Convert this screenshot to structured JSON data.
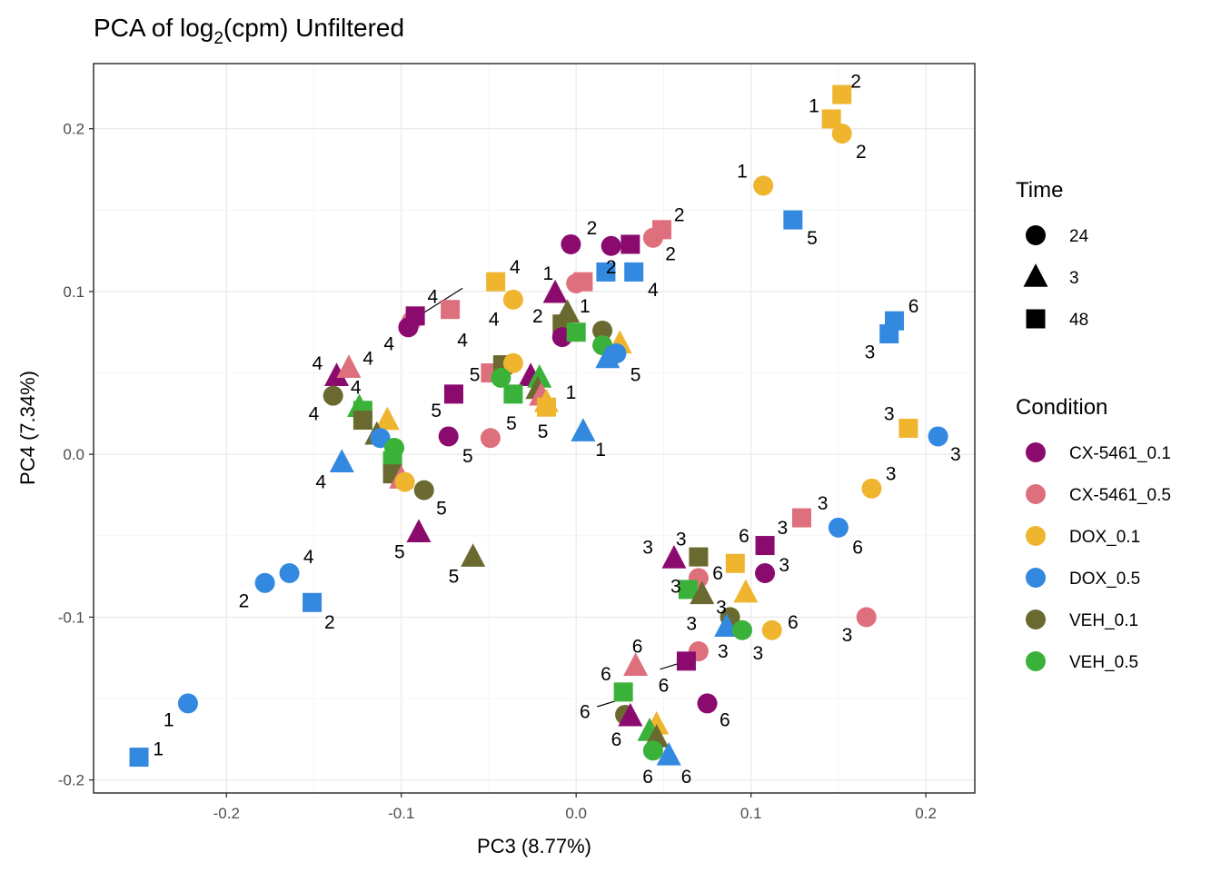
{
  "chart_data": {
    "type": "scatter",
    "title": "PCA of log",
    "title_subscript": "2",
    "title_suffix": "(cpm) Unfiltered",
    "xlabel": "PC3 (8.77%)",
    "ylabel": "PC4 (7.34%)",
    "xlim": [
      -0.276,
      0.228
    ],
    "ylim": [
      -0.208,
      0.24
    ],
    "xticks": [
      -0.2,
      -0.1,
      0.0,
      0.1,
      0.2
    ],
    "xtick_labels": [
      "-0.2",
      "-0.1",
      "0.0",
      "0.1",
      "0.2"
    ],
    "yticks": [
      -0.2,
      -0.1,
      0.0,
      0.1,
      0.2
    ],
    "ytick_labels": [
      "-0.2",
      "-0.1",
      "0.0",
      "0.1",
      "0.2"
    ],
    "grid": true,
    "legend_time": {
      "title": "Time",
      "items": [
        {
          "label": "24",
          "shape": "circle"
        },
        {
          "label": "3",
          "shape": "triangle"
        },
        {
          "label": "48",
          "shape": "square"
        }
      ]
    },
    "legend_condition": {
      "title": "Condition",
      "items": [
        {
          "label": "CX-5461_0.1",
          "color": "#8b0a6e"
        },
        {
          "label": "CX-5461_0.5",
          "color": "#de6f7c"
        },
        {
          "label": "DOX_0.1",
          "color": "#efb52f"
        },
        {
          "label": "DOX_0.5",
          "color": "#3388e0"
        },
        {
          "label": "VEH_0.1",
          "color": "#6a6a30"
        },
        {
          "label": "VEH_0.5",
          "color": "#3ab23a"
        }
      ]
    },
    "points": [
      {
        "x": 0.152,
        "y": 0.221,
        "c": "DOX_0.1",
        "s": "48",
        "label": "2",
        "lx": 0.16,
        "ly": 0.229
      },
      {
        "x": 0.146,
        "y": 0.206,
        "c": "DOX_0.1",
        "s": "48",
        "label": "1",
        "lx": 0.136,
        "ly": 0.214
      },
      {
        "x": 0.152,
        "y": 0.197,
        "c": "DOX_0.1",
        "s": "24",
        "label": "2",
        "lx": 0.163,
        "ly": 0.186
      },
      {
        "x": 0.107,
        "y": 0.165,
        "c": "DOX_0.1",
        "s": "24",
        "label": "1",
        "lx": 0.095,
        "ly": 0.174
      },
      {
        "x": 0.124,
        "y": 0.144,
        "c": "DOX_0.5",
        "s": "48",
        "label": "5",
        "lx": 0.135,
        "ly": 0.133
      },
      {
        "x": 0.182,
        "y": 0.082,
        "c": "DOX_0.5",
        "s": "48",
        "label": "6",
        "lx": 0.193,
        "ly": 0.091
      },
      {
        "x": 0.179,
        "y": 0.074,
        "c": "DOX_0.5",
        "s": "48",
        "label": "3",
        "lx": 0.168,
        "ly": 0.063
      },
      {
        "x": 0.19,
        "y": 0.016,
        "c": "DOX_0.1",
        "s": "48",
        "label": "3",
        "lx": 0.179,
        "ly": 0.025
      },
      {
        "x": 0.207,
        "y": 0.011,
        "c": "DOX_0.5",
        "s": "24",
        "label": "3",
        "lx": 0.217,
        "ly": 0.0
      },
      {
        "x": 0.169,
        "y": -0.021,
        "c": "DOX_0.1",
        "s": "24",
        "label": "3",
        "lx": 0.18,
        "ly": -0.012
      },
      {
        "x": 0.129,
        "y": -0.039,
        "c": "CX-5461_0.5",
        "s": "48",
        "label": "3",
        "lx": 0.141,
        "ly": -0.03
      },
      {
        "x": 0.15,
        "y": -0.045,
        "c": "DOX_0.5",
        "s": "24",
        "label": "6",
        "lx": 0.161,
        "ly": -0.057
      },
      {
        "x": 0.108,
        "y": -0.056,
        "c": "CX-5461_0.1",
        "s": "48",
        "label": "3",
        "lx": 0.118,
        "ly": -0.045
      },
      {
        "x": 0.166,
        "y": -0.1,
        "c": "CX-5461_0.5",
        "s": "24",
        "label": "3",
        "lx": 0.155,
        "ly": -0.111
      },
      {
        "x": 0.108,
        "y": -0.073,
        "c": "CX-5461_0.1",
        "s": "24",
        "label": "3",
        "lx": 0.119,
        "ly": -0.068
      },
      {
        "x": 0.112,
        "y": -0.108,
        "c": "DOX_0.1",
        "s": "24",
        "label": "6",
        "lx": 0.124,
        "ly": -0.103
      },
      {
        "x": 0.091,
        "y": -0.067,
        "c": "DOX_0.1",
        "s": "48",
        "label": "6",
        "lx": 0.096,
        "ly": -0.05
      },
      {
        "x": 0.097,
        "y": -0.085,
        "c": "DOX_0.1",
        "s": "3",
        "label": "",
        "lx": 0,
        "ly": 0
      },
      {
        "x": 0.07,
        "y": -0.063,
        "c": "VEH_0.1",
        "s": "48",
        "label": "3",
        "lx": 0.06,
        "ly": -0.052
      },
      {
        "x": 0.056,
        "y": -0.064,
        "c": "CX-5461_0.1",
        "s": "3",
        "label": "3",
        "lx": 0.041,
        "ly": -0.057
      },
      {
        "x": 0.07,
        "y": -0.076,
        "c": "CX-5461_0.5",
        "s": "24",
        "label": "6",
        "lx": 0.081,
        "ly": -0.073
      },
      {
        "x": 0.064,
        "y": -0.083,
        "c": "VEH_0.5",
        "s": "48",
        "label": "3",
        "lx": 0.057,
        "ly": -0.081
      },
      {
        "x": 0.072,
        "y": -0.086,
        "c": "VEH_0.1",
        "s": "3",
        "label": "3",
        "lx": 0.083,
        "ly": -0.094
      },
      {
        "x": 0.088,
        "y": -0.1,
        "c": "VEH_0.1",
        "s": "24",
        "label": "3",
        "lx": 0.066,
        "ly": -0.104
      },
      {
        "x": 0.086,
        "y": -0.106,
        "c": "DOX_0.5",
        "s": "3",
        "label": "",
        "lx": 0,
        "ly": 0
      },
      {
        "x": 0.095,
        "y": -0.108,
        "c": "VEH_0.5",
        "s": "24",
        "label": "3",
        "lx": 0.104,
        "ly": -0.122
      },
      {
        "x": 0.07,
        "y": -0.121,
        "c": "CX-5461_0.5",
        "s": "24",
        "label": "3",
        "lx": 0.084,
        "ly": -0.121
      },
      {
        "x": 0.063,
        "y": -0.127,
        "c": "CX-5461_0.1",
        "s": "48",
        "label": "6",
        "lx": 0.05,
        "ly": -0.142
      },
      {
        "x": 0.075,
        "y": -0.153,
        "c": "CX-5461_0.1",
        "s": "24",
        "label": "6",
        "lx": 0.085,
        "ly": -0.163
      },
      {
        "x": 0.034,
        "y": -0.13,
        "c": "CX-5461_0.5",
        "s": "3",
        "label": "6",
        "lx": 0.035,
        "ly": -0.118
      },
      {
        "x": 0.027,
        "y": -0.146,
        "c": "VEH_0.5",
        "s": "48",
        "label": "6",
        "lx": 0.017,
        "ly": -0.135
      },
      {
        "x": 0.028,
        "y": -0.16,
        "c": "VEH_0.1",
        "s": "24",
        "label": "6",
        "lx": 0.005,
        "ly": -0.158
      },
      {
        "x": 0.031,
        "y": -0.161,
        "c": "CX-5461_0.1",
        "s": "3",
        "label": "",
        "lx": 0,
        "ly": 0
      },
      {
        "x": 0.046,
        "y": -0.166,
        "c": "DOX_0.1",
        "s": "3",
        "label": "",
        "lx": 0,
        "ly": 0
      },
      {
        "x": 0.042,
        "y": -0.17,
        "c": "VEH_0.5",
        "s": "3",
        "label": "6",
        "lx": 0.023,
        "ly": -0.175
      },
      {
        "x": 0.046,
        "y": -0.174,
        "c": "VEH_0.1",
        "s": "3",
        "label": "",
        "lx": 0,
        "ly": 0
      },
      {
        "x": 0.044,
        "y": -0.182,
        "c": "VEH_0.5",
        "s": "24",
        "label": "6",
        "lx": 0.041,
        "ly": -0.198
      },
      {
        "x": 0.053,
        "y": -0.185,
        "c": "DOX_0.5",
        "s": "3",
        "label": "6",
        "lx": 0.063,
        "ly": -0.198
      },
      {
        "x": 0.0,
        "y": 0.105,
        "c": "CX-5461_0.5",
        "s": "24",
        "label": "",
        "lx": 0,
        "ly": 0
      },
      {
        "x": 0.004,
        "y": 0.106,
        "c": "CX-5461_0.5",
        "s": "48",
        "label": "",
        "lx": 0,
        "ly": 0
      },
      {
        "x": -0.012,
        "y": 0.099,
        "c": "CX-5461_0.1",
        "s": "3",
        "label": "1",
        "lx": -0.016,
        "ly": 0.111
      },
      {
        "x": -0.005,
        "y": 0.087,
        "c": "VEH_0.1",
        "s": "3",
        "label": "1",
        "lx": 0.005,
        "ly": 0.091
      },
      {
        "x": -0.008,
        "y": 0.08,
        "c": "VEH_0.1",
        "s": "48",
        "label": "2",
        "lx": -0.022,
        "ly": 0.085
      },
      {
        "x": -0.008,
        "y": 0.072,
        "c": "CX-5461_0.1",
        "s": "24",
        "label": "",
        "lx": 0,
        "ly": 0
      },
      {
        "x": 0.015,
        "y": 0.076,
        "c": "VEH_0.1",
        "s": "24",
        "label": "",
        "lx": 0,
        "ly": 0
      },
      {
        "x": 0.025,
        "y": 0.068,
        "c": "DOX_0.1",
        "s": "3",
        "label": "",
        "lx": 0,
        "ly": 0
      },
      {
        "x": 0.0,
        "y": 0.075,
        "c": "VEH_0.5",
        "s": "48",
        "label": "",
        "lx": 0,
        "ly": 0
      },
      {
        "x": 0.015,
        "y": 0.067,
        "c": "VEH_0.5",
        "s": "24",
        "label": "",
        "lx": 0,
        "ly": 0
      },
      {
        "x": 0.018,
        "y": 0.059,
        "c": "DOX_0.5",
        "s": "3",
        "label": "5",
        "lx": 0.034,
        "ly": 0.049
      },
      {
        "x": 0.023,
        "y": 0.062,
        "c": "DOX_0.5",
        "s": "24",
        "label": "",
        "lx": 0,
        "ly": 0
      },
      {
        "x": -0.003,
        "y": 0.129,
        "c": "CX-5461_0.1",
        "s": "24",
        "label": "",
        "lx": 0,
        "ly": 0
      },
      {
        "x": 0.02,
        "y": 0.128,
        "c": "CX-5461_0.1",
        "s": "24",
        "label": "2",
        "lx": 0.009,
        "ly": 0.139
      },
      {
        "x": 0.031,
        "y": 0.129,
        "c": "CX-5461_0.1",
        "s": "48",
        "label": "",
        "lx": 0,
        "ly": 0
      },
      {
        "x": 0.044,
        "y": 0.133,
        "c": "CX-5461_0.5",
        "s": "24",
        "label": "2",
        "lx": 0.054,
        "ly": 0.123
      },
      {
        "x": 0.049,
        "y": 0.138,
        "c": "CX-5461_0.5",
        "s": "48",
        "label": "2",
        "lx": 0.059,
        "ly": 0.147
      },
      {
        "x": 0.033,
        "y": 0.112,
        "c": "DOX_0.5",
        "s": "48",
        "label": "4",
        "lx": 0.044,
        "ly": 0.101
      },
      {
        "x": 0.017,
        "y": 0.112,
        "c": "DOX_0.5",
        "s": "48",
        "label": "2",
        "lx": 0.02,
        "ly": 0.115
      },
      {
        "x": -0.046,
        "y": 0.106,
        "c": "DOX_0.1",
        "s": "48",
        "label": "4",
        "lx": -0.035,
        "ly": 0.115
      },
      {
        "x": -0.036,
        "y": 0.095,
        "c": "DOX_0.1",
        "s": "24",
        "label": "4",
        "lx": -0.047,
        "ly": 0.083
      },
      {
        "x": -0.094,
        "y": 0.082,
        "c": "CX-5461_0.5",
        "s": "24",
        "label": "4",
        "lx": -0.082,
        "ly": 0.097
      },
      {
        "x": -0.092,
        "y": 0.085,
        "c": "CX-5461_0.1",
        "s": "48",
        "label": "",
        "lx": 0,
        "ly": 0
      },
      {
        "x": -0.096,
        "y": 0.078,
        "c": "CX-5461_0.1",
        "s": "24",
        "label": "4",
        "lx": -0.107,
        "ly": 0.068
      },
      {
        "x": -0.072,
        "y": 0.089,
        "c": "CX-5461_0.5",
        "s": "48",
        "label": "4",
        "lx": -0.065,
        "ly": 0.07
      },
      {
        "x": -0.137,
        "y": 0.048,
        "c": "CX-5461_0.1",
        "s": "3",
        "label": "4",
        "lx": -0.148,
        "ly": 0.056
      },
      {
        "x": -0.13,
        "y": 0.053,
        "c": "CX-5461_0.5",
        "s": "3",
        "label": "4",
        "lx": -0.119,
        "ly": 0.059
      },
      {
        "x": -0.139,
        "y": 0.036,
        "c": "VEH_0.1",
        "s": "24",
        "label": "4",
        "lx": -0.15,
        "ly": 0.025
      },
      {
        "x": -0.124,
        "y": 0.029,
        "c": "VEH_0.5",
        "s": "3",
        "label": "4",
        "lx": -0.126,
        "ly": 0.041
      },
      {
        "x": -0.122,
        "y": 0.027,
        "c": "VEH_0.5",
        "s": "48",
        "label": "",
        "lx": 0,
        "ly": 0
      },
      {
        "x": -0.122,
        "y": 0.021,
        "c": "VEH_0.1",
        "s": "48",
        "label": "",
        "lx": 0,
        "ly": 0
      },
      {
        "x": -0.108,
        "y": 0.021,
        "c": "DOX_0.1",
        "s": "3",
        "label": "",
        "lx": 0,
        "ly": 0
      },
      {
        "x": -0.114,
        "y": 0.012,
        "c": "VEH_0.1",
        "s": "3",
        "label": "",
        "lx": 0,
        "ly": 0
      },
      {
        "x": -0.112,
        "y": 0.01,
        "c": "DOX_0.5",
        "s": "24",
        "label": "",
        "lx": 0,
        "ly": 0
      },
      {
        "x": -0.104,
        "y": 0.004,
        "c": "VEH_0.5",
        "s": "24",
        "label": "",
        "lx": 0,
        "ly": 0
      },
      {
        "x": -0.105,
        "y": -0.004,
        "c": "VEH_0.5",
        "s": "48",
        "label": "",
        "lx": 0,
        "ly": 0
      },
      {
        "x": -0.105,
        "y": -0.012,
        "c": "VEH_0.1",
        "s": "48",
        "label": "",
        "lx": 0,
        "ly": 0
      },
      {
        "x": -0.1,
        "y": -0.015,
        "c": "CX-5461_0.5",
        "s": "3",
        "label": "",
        "lx": 0,
        "ly": 0
      },
      {
        "x": -0.098,
        "y": -0.017,
        "c": "DOX_0.1",
        "s": "24",
        "label": "",
        "lx": 0,
        "ly": 0
      },
      {
        "x": -0.134,
        "y": -0.005,
        "c": "DOX_0.5",
        "s": "3",
        "label": "4",
        "lx": -0.146,
        "ly": -0.017
      },
      {
        "x": -0.087,
        "y": -0.022,
        "c": "VEH_0.1",
        "s": "24",
        "label": "5",
        "lx": -0.077,
        "ly": -0.033
      },
      {
        "x": -0.09,
        "y": -0.048,
        "c": "CX-5461_0.1",
        "s": "3",
        "label": "5",
        "lx": -0.101,
        "ly": -0.06
      },
      {
        "x": -0.059,
        "y": -0.063,
        "c": "VEH_0.1",
        "s": "3",
        "label": "5",
        "lx": -0.07,
        "ly": -0.075
      },
      {
        "x": -0.07,
        "y": 0.037,
        "c": "CX-5461_0.1",
        "s": "48",
        "label": "5",
        "lx": -0.08,
        "ly": 0.027
      },
      {
        "x": -0.073,
        "y": 0.011,
        "c": "CX-5461_0.1",
        "s": "24",
        "label": "5",
        "lx": -0.062,
        "ly": -0.001
      },
      {
        "x": -0.049,
        "y": 0.01,
        "c": "CX-5461_0.5",
        "s": "24",
        "label": "5",
        "lx": -0.037,
        "ly": 0.019
      },
      {
        "x": -0.049,
        "y": 0.05,
        "c": "CX-5461_0.5",
        "s": "48",
        "label": "5",
        "lx": -0.058,
        "ly": 0.049
      },
      {
        "x": -0.042,
        "y": 0.055,
        "c": "VEH_0.1",
        "s": "48",
        "label": "",
        "lx": 0,
        "ly": 0
      },
      {
        "x": -0.036,
        "y": 0.056,
        "c": "DOX_0.1",
        "s": "24",
        "label": "",
        "lx": 0,
        "ly": 0
      },
      {
        "x": -0.043,
        "y": 0.047,
        "c": "VEH_0.5",
        "s": "24",
        "label": "",
        "lx": 0,
        "ly": 0
      },
      {
        "x": -0.026,
        "y": 0.048,
        "c": "CX-5461_0.1",
        "s": "3",
        "label": "",
        "lx": 0,
        "ly": 0
      },
      {
        "x": -0.021,
        "y": 0.047,
        "c": "VEH_0.5",
        "s": "3",
        "label": "",
        "lx": 0,
        "ly": 0
      },
      {
        "x": -0.022,
        "y": 0.04,
        "c": "VEH_0.1",
        "s": "3",
        "label": "1",
        "lx": -0.003,
        "ly": 0.038
      },
      {
        "x": -0.036,
        "y": 0.037,
        "c": "VEH_0.5",
        "s": "48",
        "label": "",
        "lx": 0,
        "ly": 0
      },
      {
        "x": -0.02,
        "y": 0.036,
        "c": "CX-5461_0.5",
        "s": "3",
        "label": "",
        "lx": 0,
        "ly": 0
      },
      {
        "x": -0.017,
        "y": 0.032,
        "c": "DOX_0.1",
        "s": "3",
        "label": "",
        "lx": 0,
        "ly": 0
      },
      {
        "x": -0.017,
        "y": 0.029,
        "c": "DOX_0.1",
        "s": "48",
        "label": "5",
        "lx": -0.019,
        "ly": 0.014
      },
      {
        "x": 0.004,
        "y": 0.014,
        "c": "DOX_0.5",
        "s": "3",
        "label": "1",
        "lx": 0.014,
        "ly": 0.003
      },
      {
        "x": -0.164,
        "y": -0.073,
        "c": "DOX_0.5",
        "s": "24",
        "label": "4",
        "lx": -0.153,
        "ly": -0.063
      },
      {
        "x": -0.178,
        "y": -0.079,
        "c": "DOX_0.5",
        "s": "24",
        "label": "2",
        "lx": -0.19,
        "ly": -0.09
      },
      {
        "x": -0.151,
        "y": -0.091,
        "c": "DOX_0.5",
        "s": "48",
        "label": "2",
        "lx": -0.141,
        "ly": -0.103
      },
      {
        "x": -0.222,
        "y": -0.153,
        "c": "DOX_0.5",
        "s": "24",
        "label": "1",
        "lx": -0.233,
        "ly": -0.163
      },
      {
        "x": -0.25,
        "y": -0.186,
        "c": "DOX_0.5",
        "s": "48",
        "label": "1",
        "lx": -0.239,
        "ly": -0.181
      }
    ],
    "leader_lines": [
      {
        "x1": -0.093,
        "y1": 0.083,
        "x2": -0.065,
        "y2": 0.102
      },
      {
        "x1": 0.063,
        "y1": -0.127,
        "x2": 0.048,
        "y2": -0.132
      },
      {
        "x1": 0.027,
        "y1": -0.15,
        "x2": 0.012,
        "y2": -0.155
      }
    ]
  }
}
